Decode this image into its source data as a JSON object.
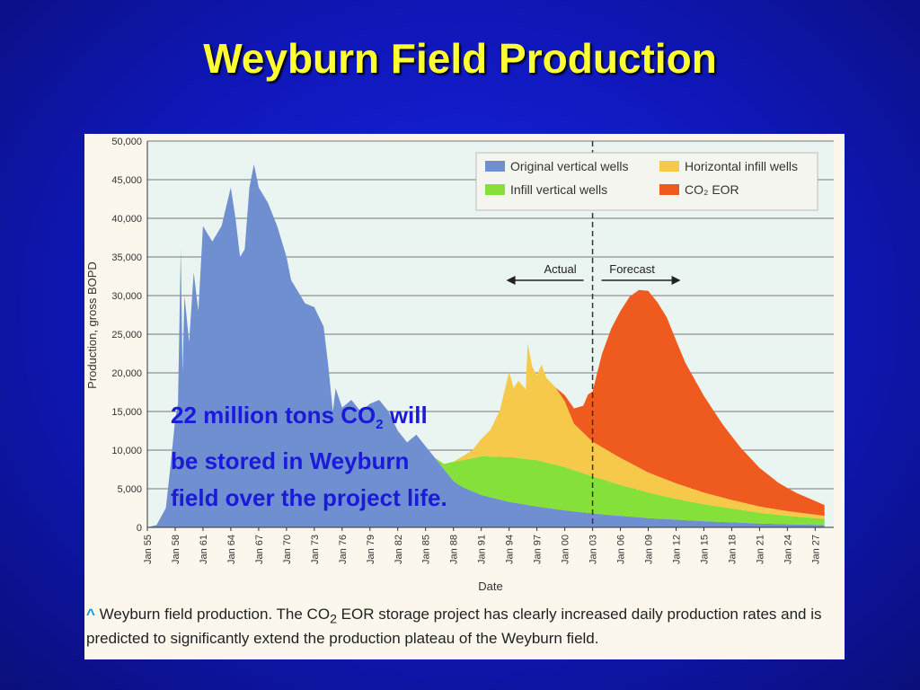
{
  "slide": {
    "title": "Weyburn Field Production"
  },
  "callout": {
    "line1_pre": "22 million tons CO",
    "line1_sub": "2",
    "line1_post": " will",
    "line2": "be stored in Weyburn",
    "line3": "field over the project life."
  },
  "caption": {
    "caret": "^",
    "pre": " Weyburn field production. The CO",
    "sub": "2",
    "post": " EOR storage project has clearly increased daily production rates and is predicted to significantly extend the production plateau of the Weyburn field."
  },
  "colors": {
    "original_vertical": "#6f8fd0",
    "infill_vertical": "#86e03a",
    "horizontal_infill": "#f7c94a",
    "co2_eor": "#ef5a1e",
    "plot_bg": "#eaf4f1",
    "gridline": "#777777"
  },
  "chart_data": {
    "type": "area",
    "stacked": true,
    "xlabel": "Date",
    "ylabel": "Production, gross BOPD",
    "ylim": [
      0,
      50000
    ],
    "xlim": [
      1955,
      2029
    ],
    "y_ticks": [
      "0",
      "5,000",
      "10,000",
      "15,000",
      "20,000",
      "25,000",
      "30,000",
      "35,000",
      "40,000",
      "45,000",
      "50,000"
    ],
    "x_ticks": [
      "Jan 55",
      "Jan 58",
      "Jan 61",
      "Jan 64",
      "Jan 67",
      "Jan 70",
      "Jan 73",
      "Jan 76",
      "Jan 79",
      "Jan 82",
      "Jan 85",
      "Jan 88",
      "Jan 91",
      "Jan 94",
      "Jan 97",
      "Jan 00",
      "Jan 03",
      "Jan 06",
      "Jan 09",
      "Jan 12",
      "Jan 15",
      "Jan 18",
      "Jan 21",
      "Jan 24",
      "Jan 27"
    ],
    "x_tick_years": [
      1955,
      1958,
      1961,
      1964,
      1967,
      1970,
      1973,
      1976,
      1979,
      1982,
      1985,
      1988,
      1991,
      1994,
      1997,
      2000,
      2003,
      2006,
      2009,
      2012,
      2015,
      2018,
      2021,
      2024,
      2027
    ],
    "legend_position": "top-right",
    "divider_year": 2003,
    "actual_label": "Actual",
    "forecast_label": "Forecast",
    "series": [
      {
        "name": "Original vertical wells",
        "points": [
          [
            1955,
            0
          ],
          [
            1956,
            300
          ],
          [
            1957,
            2500
          ],
          [
            1957.5,
            8000
          ],
          [
            1958,
            14000
          ],
          [
            1958.3,
            16000
          ],
          [
            1958.6,
            36000
          ],
          [
            1958.8,
            20000
          ],
          [
            1959,
            30000
          ],
          [
            1959.5,
            24000
          ],
          [
            1960,
            33000
          ],
          [
            1960.5,
            28000
          ],
          [
            1961,
            39000
          ],
          [
            1961.5,
            38000
          ],
          [
            1962,
            37000
          ],
          [
            1963,
            39000
          ],
          [
            1964,
            44000
          ],
          [
            1964.5,
            40000
          ],
          [
            1965,
            35000
          ],
          [
            1965.5,
            36000
          ],
          [
            1966,
            44000
          ],
          [
            1966.5,
            47000
          ],
          [
            1967,
            44000
          ],
          [
            1968,
            42000
          ],
          [
            1969,
            39000
          ],
          [
            1970,
            35000
          ],
          [
            1970.5,
            32000
          ],
          [
            1971,
            31000
          ],
          [
            1971.5,
            30000
          ],
          [
            1972,
            29000
          ],
          [
            1973,
            28500
          ],
          [
            1974,
            26000
          ],
          [
            1974.5,
            21000
          ],
          [
            1975,
            15000
          ],
          [
            1975.3,
            18000
          ],
          [
            1976,
            15500
          ],
          [
            1977,
            16500
          ],
          [
            1978,
            15000
          ],
          [
            1979,
            16000
          ],
          [
            1980,
            16500
          ],
          [
            1981,
            15000
          ],
          [
            1982,
            12500
          ],
          [
            1983,
            11000
          ],
          [
            1984,
            12000
          ],
          [
            1985,
            10500
          ],
          [
            1986,
            9000
          ],
          [
            1987,
            7500
          ],
          [
            1988,
            6000
          ],
          [
            1989,
            5200
          ],
          [
            1991,
            4200
          ],
          [
            1994,
            3300
          ],
          [
            1997,
            2700
          ],
          [
            2000,
            2200
          ],
          [
            2003,
            1800
          ],
          [
            2006,
            1500
          ],
          [
            2009,
            1200
          ],
          [
            2012,
            1000
          ],
          [
            2015,
            800
          ],
          [
            2018,
            650
          ],
          [
            2021,
            500
          ],
          [
            2024,
            400
          ],
          [
            2028,
            300
          ]
        ]
      },
      {
        "name": "Infill vertical wells",
        "points": [
          [
            1986,
            0
          ],
          [
            1987,
            700
          ],
          [
            1988,
            2500
          ],
          [
            1989,
            3500
          ],
          [
            1991,
            5000
          ],
          [
            1994,
            5800
          ],
          [
            1997,
            6000
          ],
          [
            2000,
            5600
          ],
          [
            2003,
            4800
          ],
          [
            2006,
            4000
          ],
          [
            2009,
            3300
          ],
          [
            2012,
            2700
          ],
          [
            2015,
            2200
          ],
          [
            2018,
            1800
          ],
          [
            2021,
            1400
          ],
          [
            2024,
            1100
          ],
          [
            2028,
            800
          ]
        ]
      },
      {
        "name": "Horizontal infill wells",
        "points": [
          [
            1988,
            0
          ],
          [
            1990,
            1000
          ],
          [
            1992,
            3500
          ],
          [
            1993,
            6000
          ],
          [
            1994,
            11000
          ],
          [
            1994.5,
            9000
          ],
          [
            1995,
            10000
          ],
          [
            1995.8,
            9000
          ],
          [
            1996,
            15000
          ],
          [
            1996.5,
            12000
          ],
          [
            1997,
            11000
          ],
          [
            1997.5,
            12500
          ],
          [
            1998,
            11000
          ],
          [
            1999,
            10000
          ],
          [
            2000,
            8500
          ],
          [
            2001,
            6000
          ],
          [
            2003,
            4500
          ],
          [
            2006,
            3500
          ],
          [
            2009,
            2600
          ],
          [
            2012,
            2000
          ],
          [
            2015,
            1500
          ],
          [
            2018,
            1100
          ],
          [
            2021,
            800
          ],
          [
            2024,
            600
          ],
          [
            2028,
            400
          ]
        ]
      },
      {
        "name": "CO₂ EOR",
        "points": [
          [
            1999,
            0
          ],
          [
            2000,
            800
          ],
          [
            2001,
            2000
          ],
          [
            2002,
            3500
          ],
          [
            2002.5,
            5500
          ],
          [
            2003,
            6500
          ],
          [
            2004,
            12000
          ],
          [
            2005,
            16000
          ],
          [
            2006,
            19000
          ],
          [
            2007,
            21500
          ],
          [
            2008,
            23000
          ],
          [
            2009,
            23500
          ],
          [
            2010,
            22500
          ],
          [
            2011,
            21000
          ],
          [
            2012,
            18500
          ],
          [
            2013,
            16000
          ],
          [
            2015,
            12500
          ],
          [
            2017,
            9500
          ],
          [
            2019,
            7000
          ],
          [
            2021,
            5000
          ],
          [
            2023,
            3500
          ],
          [
            2025,
            2500
          ],
          [
            2028,
            1400
          ]
        ]
      }
    ]
  }
}
